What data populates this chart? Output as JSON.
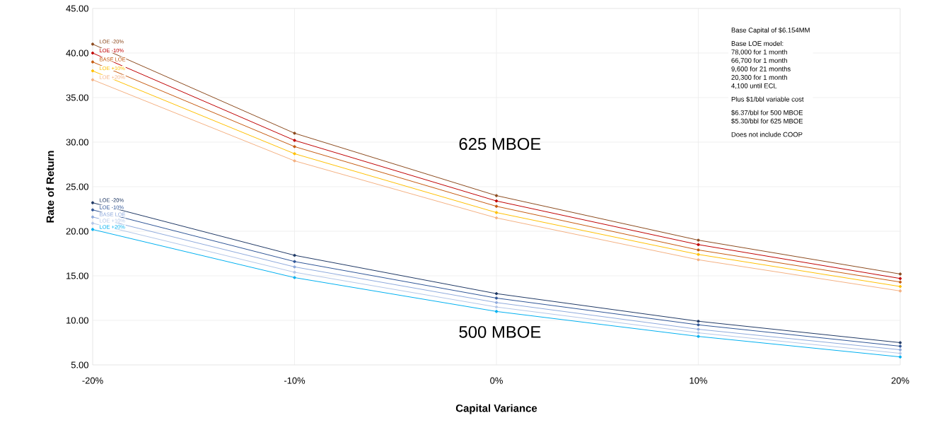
{
  "chart_data": {
    "type": "line",
    "xlabel": "Capital Variance",
    "ylabel": "Rate of Return",
    "categories": [
      "-20%",
      "-10%",
      "0%",
      "10%",
      "20%"
    ],
    "ylim": [
      5,
      45
    ],
    "yticks": [
      {
        "value": 5,
        "label": "5.00"
      },
      {
        "value": 10,
        "label": "10.00"
      },
      {
        "value": 15,
        "label": "15.00"
      },
      {
        "value": 20,
        "label": "20.00"
      },
      {
        "value": 25,
        "label": "25.00"
      },
      {
        "value": 30,
        "label": "30.00"
      },
      {
        "value": 35,
        "label": "35.00"
      },
      {
        "value": 40,
        "label": "40.00"
      },
      {
        "value": 45,
        "label": "45.00"
      }
    ],
    "grid": true,
    "marker": "circle",
    "line_style": "solid",
    "series": [
      {
        "name": "LOE -20%",
        "color": "#8c4a1e",
        "values": [
          41.0,
          31.0,
          24.0,
          19.0,
          15.2
        ]
      },
      {
        "name": "LOE -10%",
        "color": "#c00000",
        "values": [
          40.0,
          30.2,
          23.4,
          18.5,
          14.7
        ]
      },
      {
        "name": "BASE LOE",
        "color": "#c55a11",
        "values": [
          39.0,
          29.5,
          22.8,
          17.9,
          14.3
        ]
      },
      {
        "name": "LOE +10%",
        "color": "#ffc000",
        "values": [
          38.0,
          28.7,
          22.1,
          17.4,
          13.8
        ]
      },
      {
        "name": "LOE +20%",
        "color": "#f4b183",
        "values": [
          37.0,
          27.9,
          21.5,
          16.8,
          13.3
        ]
      },
      {
        "name": "LOE -20%",
        "color": "#1f3864",
        "values": [
          23.2,
          17.3,
          13.0,
          9.9,
          7.5
        ]
      },
      {
        "name": "LOE -10%",
        "color": "#2f5597",
        "values": [
          22.4,
          16.6,
          12.5,
          9.5,
          7.1
        ]
      },
      {
        "name": "BASE LOE",
        "color": "#8faadc",
        "values": [
          21.6,
          16.0,
          12.0,
          9.0,
          6.7
        ]
      },
      {
        "name": "LOE +10%",
        "color": "#b4c7e7",
        "values": [
          20.9,
          15.4,
          11.5,
          8.6,
          6.3
        ]
      },
      {
        "name": "LOE +20%",
        "color": "#00b0f0",
        "values": [
          20.2,
          14.8,
          11.0,
          8.2,
          5.9
        ]
      }
    ],
    "annotations": [
      "625 MBOE",
      "500 MBOE",
      "Base Capital of $6.154MM",
      "Base LOE model:",
      "78,000 for 1 month",
      "66,700 for 1 month",
      "9,600 for 21 months",
      "20,300 for 1 month",
      "4,100 until ECL",
      "Plus $1/bbl variable cost",
      "$6.37/bbl for 500 MBOE",
      "$5.30/bbl for 625 MBOE",
      "Does not include COOP"
    ]
  }
}
